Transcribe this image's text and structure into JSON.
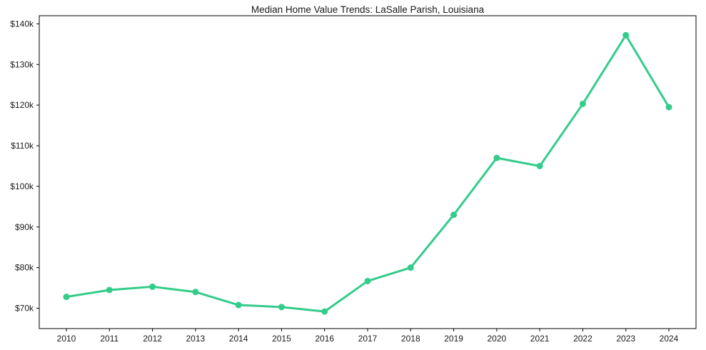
{
  "chart_data": {
    "type": "line",
    "title": "Median Home Value Trends: LaSalle Parish, Louisiana",
    "xlabel": "",
    "ylabel": "",
    "x": [
      2010,
      2011,
      2012,
      2013,
      2014,
      2015,
      2016,
      2017,
      2018,
      2019,
      2020,
      2021,
      2022,
      2023,
      2024
    ],
    "values": [
      72800,
      74500,
      75300,
      74000,
      70800,
      70300,
      69200,
      76700,
      80000,
      93000,
      107000,
      105000,
      120300,
      137200,
      119500
    ],
    "ylim": [
      65000,
      142000
    ],
    "yticks": [
      70000,
      80000,
      90000,
      100000,
      110000,
      120000,
      130000,
      140000
    ],
    "ytick_labels": [
      "$70k",
      "$80k",
      "$90k",
      "$100k",
      "$110k",
      "$120k",
      "$130k",
      "$140k"
    ],
    "xtick_labels": [
      "2010",
      "2011",
      "2012",
      "2013",
      "2014",
      "2015",
      "2016",
      "2017",
      "2018",
      "2019",
      "2020",
      "2021",
      "2022",
      "2023",
      "2024"
    ],
    "grid": false,
    "legend_position": "none",
    "line_color": "#34cc8a",
    "marker": "circle",
    "axis_color": "#000000"
  }
}
